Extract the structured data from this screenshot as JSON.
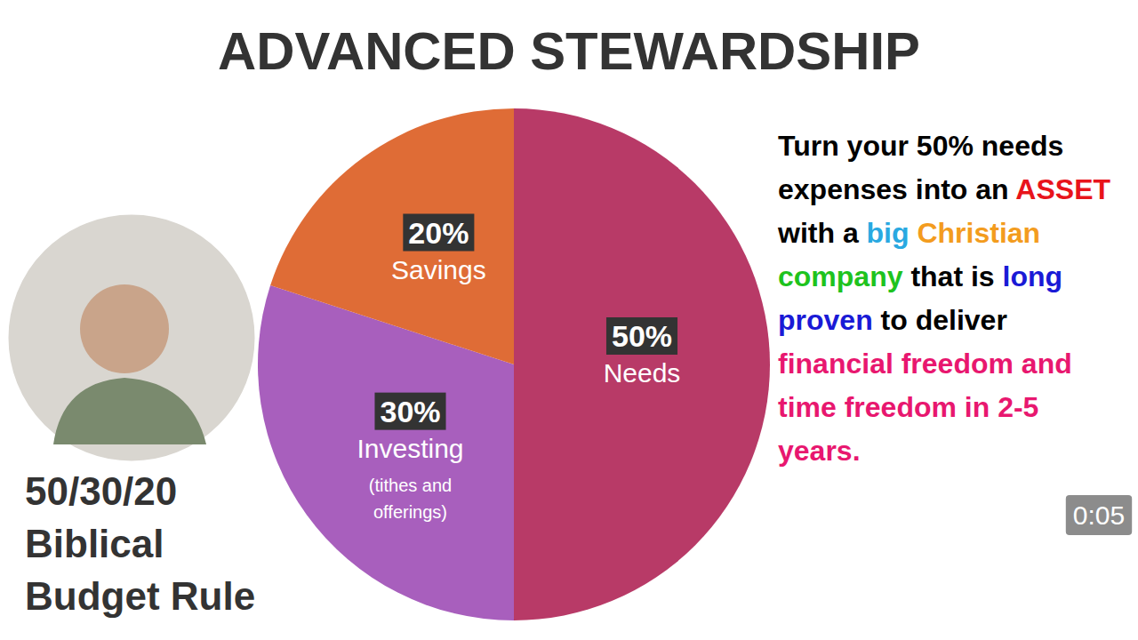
{
  "chart_data": {
    "type": "pie",
    "title": "ADVANCED STEWARDSHIP",
    "subtitle": [
      "50/30/20",
      "Biblical",
      "Budget Rule"
    ],
    "categories": [
      "Needs",
      "Investing",
      "Savings"
    ],
    "category_notes": [
      null,
      "(tithes and offerings)",
      null
    ],
    "values": [
      50,
      30,
      20
    ],
    "value_labels": [
      "50%",
      "30%",
      "20%"
    ],
    "data_labels": true,
    "colors": [
      "#b83a67",
      "#a85fbd",
      "#df6c36"
    ],
    "callout": [
      [
        {
          "text": "Turn your 50% needs",
          "color": "#000000"
        }
      ],
      [
        {
          "text": "expenses into an ",
          "color": "#000000"
        },
        {
          "text": "ASSET",
          "color": "#e8141b"
        }
      ],
      [
        {
          "text": "with a ",
          "color": "#000000"
        },
        {
          "text": "big",
          "color": "#29a9e1"
        },
        {
          "text": " Christian",
          "color": "#f39c1e"
        }
      ],
      [
        {
          "text": "company",
          "color": "#1ec31e"
        },
        {
          "text": " that is ",
          "color": "#000000"
        },
        {
          "text": "long",
          "color": "#1a1ad6"
        }
      ],
      [
        {
          "text": "proven",
          "color": "#1a1ad6"
        },
        {
          "text": " to deliver",
          "color": "#000000"
        }
      ],
      [
        {
          "text": "financial freedom and",
          "color": "#e8176f"
        }
      ],
      [
        {
          "text": "time freedom in 2-5",
          "color": "#e8176f"
        }
      ],
      [
        {
          "text": "years.",
          "color": "#e8176f"
        }
      ]
    ],
    "annotations": [
      {
        "text": "0:05"
      }
    ]
  }
}
